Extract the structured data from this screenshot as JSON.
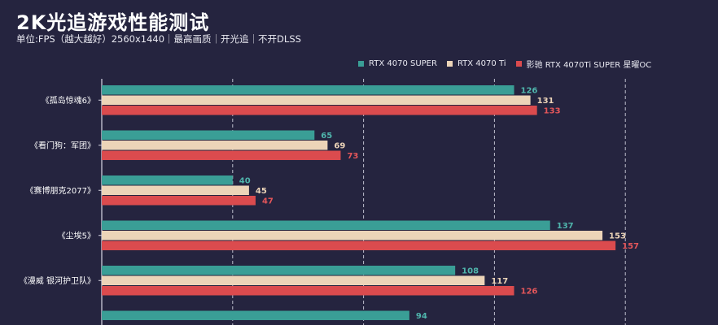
{
  "header": {
    "title": "2K光追游戏性能测试",
    "subtitle": "单位:FPS（越大越好）2560x1440｜最高画质｜开光追｜不开DLSS"
  },
  "colors": {
    "background": "#25243f",
    "series": [
      "#3a9e96",
      "#ecd4b8",
      "#db4b4e"
    ],
    "value_labels": [
      "#4fb5ac",
      "#ecd4b8",
      "#e5565a"
    ]
  },
  "chart_data": {
    "type": "bar",
    "orientation": "horizontal",
    "title": "2K光追游戏性能测试",
    "subtitle": "单位:FPS（越大越好）2560x1440｜最高画质｜开光追｜不开DLSS",
    "categories": [
      "《孤岛惊魂6》",
      "《看门狗：军团》",
      "《赛博朋克2077》",
      "《尘埃5》",
      "《漫威 银河护卫队》",
      ""
    ],
    "series": [
      {
        "name": "RTX 4070 SUPER",
        "values": [
          126,
          65,
          40,
          137,
          108,
          94
        ]
      },
      {
        "name": "RTX 4070 Ti",
        "values": [
          131,
          69,
          45,
          153,
          117,
          null
        ]
      },
      {
        "name": "影驰 RTX 4070Ti SUPER 星曜OC",
        "values": [
          133,
          73,
          47,
          157,
          126,
          null
        ]
      }
    ],
    "xlim": [
      0,
      160
    ],
    "grid": true,
    "legend_position": "top-right"
  }
}
